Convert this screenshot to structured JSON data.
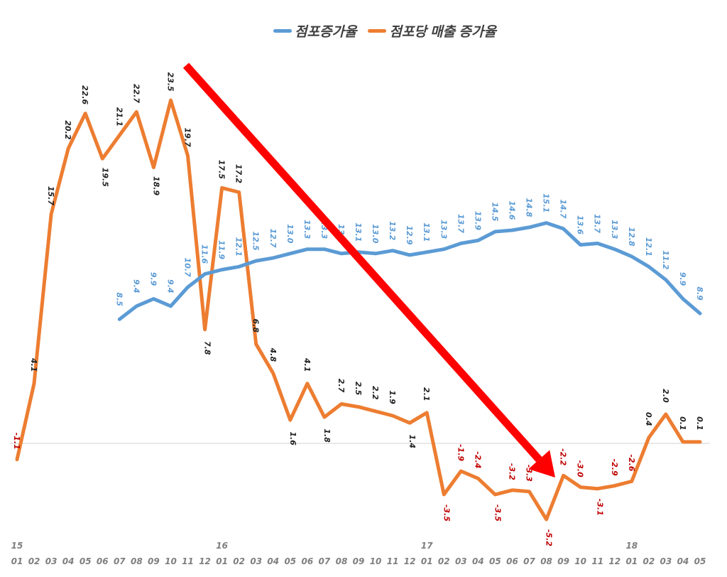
{
  "chart_data": {
    "type": "line",
    "title": "",
    "xlabel": "",
    "ylabel": "",
    "legend_position": "top",
    "grid": false,
    "zero_line": true,
    "year_labels": [
      {
        "index": 0,
        "label": "15"
      },
      {
        "index": 12,
        "label": "16"
      },
      {
        "index": 24,
        "label": "17"
      },
      {
        "index": 36,
        "label": "18"
      }
    ],
    "categories": [
      "01",
      "02",
      "03",
      "04",
      "05",
      "06",
      "07",
      "08",
      "09",
      "10",
      "11",
      "12",
      "01",
      "02",
      "03",
      "04",
      "05",
      "06",
      "07",
      "08",
      "09",
      "10",
      "11",
      "12",
      "01",
      "02",
      "03",
      "04",
      "05",
      "06",
      "07",
      "08",
      "09",
      "10",
      "11",
      "12",
      "01",
      "02",
      "03",
      "04",
      "05"
    ],
    "x": [
      "15-01",
      "15-02",
      "15-03",
      "15-04",
      "15-05",
      "15-06",
      "15-07",
      "15-08",
      "15-09",
      "15-10",
      "15-11",
      "15-12",
      "16-01",
      "16-02",
      "16-03",
      "16-04",
      "16-05",
      "16-06",
      "16-07",
      "16-08",
      "16-09",
      "16-10",
      "16-11",
      "16-12",
      "17-01",
      "17-02",
      "17-03",
      "17-04",
      "17-05",
      "17-06",
      "17-07",
      "17-08",
      "17-09",
      "17-10",
      "17-11",
      "17-12",
      "18-01",
      "18-02",
      "18-03",
      "18-04",
      "18-05"
    ],
    "series": [
      {
        "name": "점포증가율",
        "color": "#5B9BD5",
        "label_color": "#5B9BD5",
        "values": [
          null,
          null,
          null,
          null,
          null,
          null,
          8.5,
          9.4,
          9.9,
          9.4,
          10.7,
          11.6,
          11.9,
          12.1,
          12.5,
          12.7,
          13.0,
          13.3,
          13.3,
          13.0,
          13.1,
          13.0,
          13.2,
          12.9,
          13.1,
          13.3,
          13.7,
          13.9,
          14.5,
          14.6,
          14.8,
          15.1,
          14.7,
          13.6,
          13.7,
          13.3,
          12.8,
          12.1,
          11.2,
          9.9,
          8.9
        ]
      },
      {
        "name": "점포당 매출 증가율",
        "color": "#ED7D31",
        "label_color_positive": "#222222",
        "label_color_negative": "#C00000",
        "values": [
          -1.1,
          4.1,
          15.7,
          20.2,
          22.6,
          19.5,
          21.1,
          22.7,
          18.9,
          23.5,
          19.7,
          7.8,
          17.5,
          17.2,
          6.8,
          4.8,
          1.6,
          4.1,
          1.8,
          2.7,
          2.5,
          2.2,
          1.9,
          1.4,
          2.1,
          -3.5,
          -1.9,
          -2.4,
          -3.5,
          -3.2,
          -3.3,
          -5.2,
          -2.2,
          -3.0,
          -3.1,
          -2.9,
          -2.6,
          0.4,
          2.0,
          0.1,
          0.1
        ]
      }
    ],
    "annotations": [
      {
        "type": "arrow",
        "color": "#FF0000",
        "from": "15-11 (~24)",
        "to": "17-08 (~-2)",
        "meaning": "downward trend"
      }
    ],
    "ylim": [
      -6,
      26
    ]
  },
  "legend": {
    "items": [
      {
        "label": "점포증가율",
        "color": "#5B9BD5"
      },
      {
        "label": "점포당 매출 증가율",
        "color": "#ED7D31"
      }
    ]
  }
}
